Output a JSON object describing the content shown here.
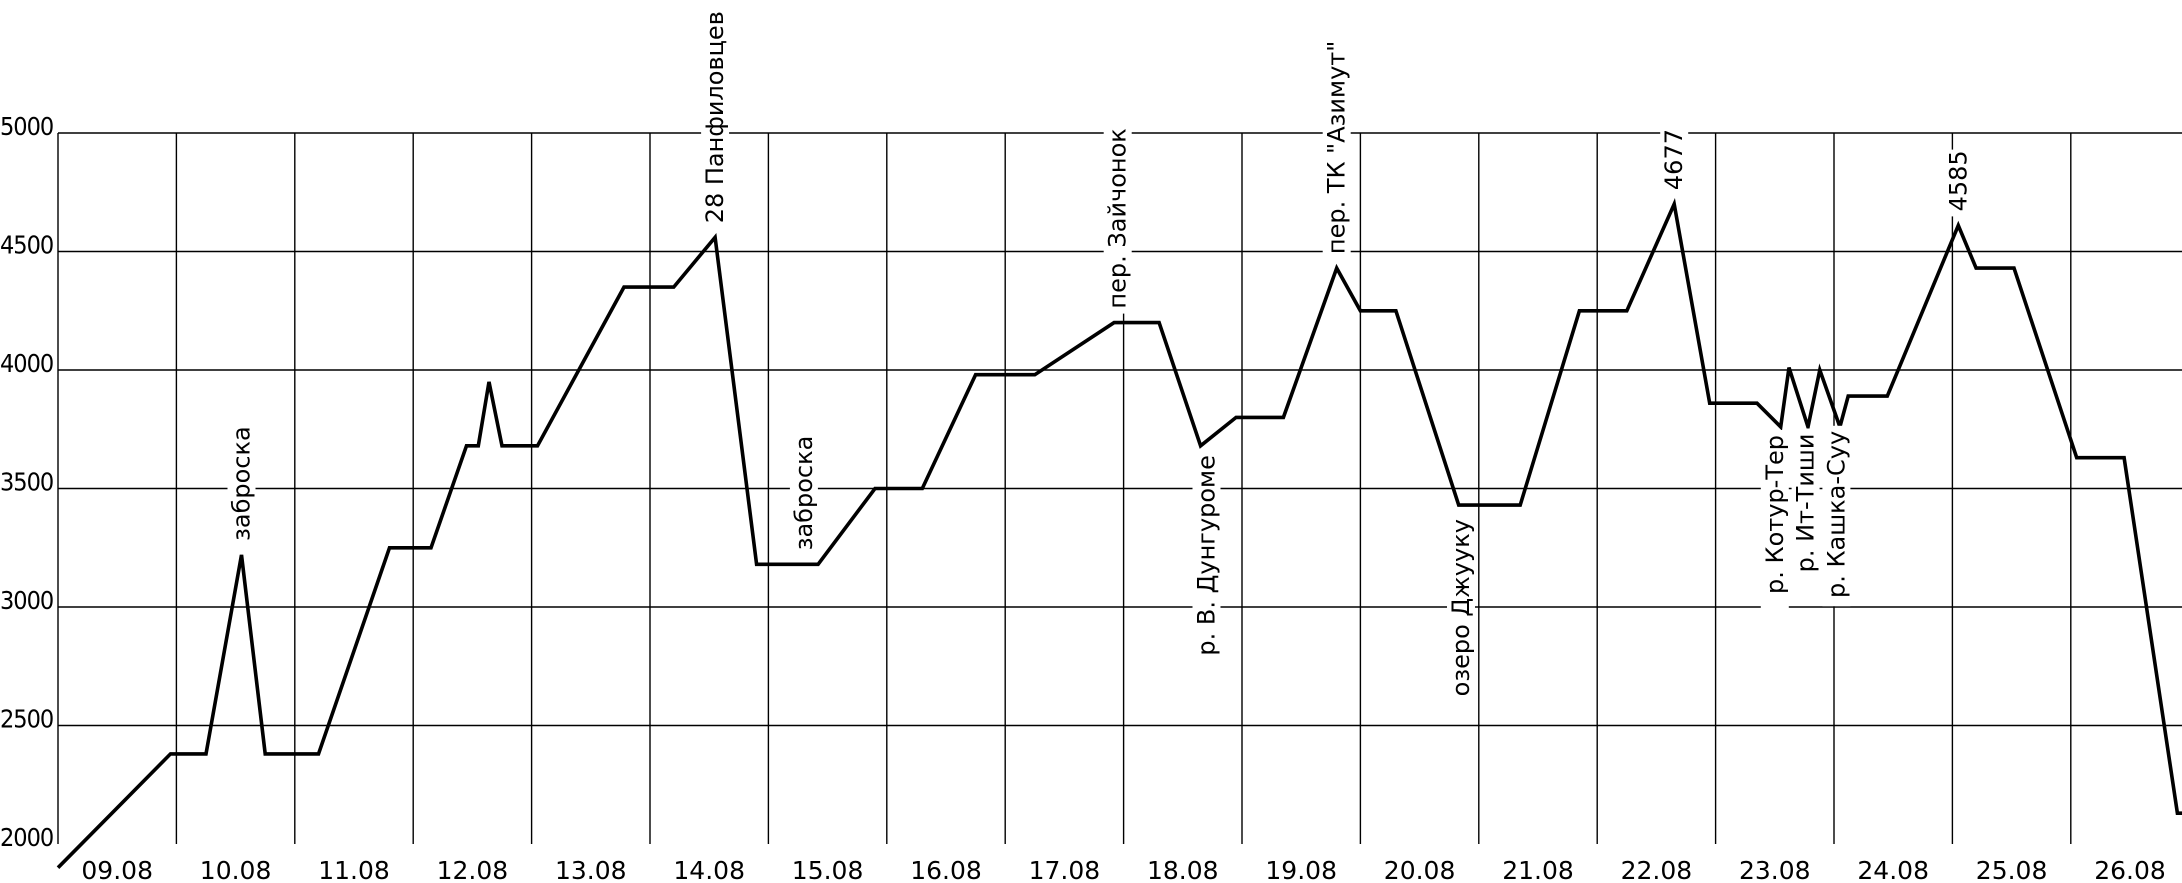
{
  "chart_data": {
    "type": "line",
    "title": "",
    "xlabel": "",
    "ylabel": "",
    "ylim": [
      2000,
      5000
    ],
    "y_ticks": [
      "5000",
      "4500",
      "4000",
      "3500",
      "3000",
      "2500",
      "2000"
    ],
    "x_ticks": [
      "09.08",
      "10.08",
      "11.08",
      "12.08",
      "13.08",
      "14.08",
      "15.08",
      "16.08",
      "17.08",
      "18.08",
      "19.08",
      "20.08",
      "21.08",
      "22.08",
      "23.08",
      "24.08",
      "25.08",
      "26.08"
    ],
    "x_unit": "day index (0 = left edge, 1 grid column per day)",
    "grid": true,
    "series": [
      {
        "points": [
          [
            0.0,
            1900
          ],
          [
            0.95,
            2380
          ],
          [
            1.25,
            2380
          ],
          [
            1.55,
            3220
          ],
          [
            1.75,
            2380
          ],
          [
            2.2,
            2380
          ],
          [
            2.8,
            3250
          ],
          [
            3.15,
            3250
          ],
          [
            3.45,
            3680
          ],
          [
            3.55,
            3680
          ],
          [
            3.64,
            3950
          ],
          [
            3.75,
            3680
          ],
          [
            4.05,
            3680
          ],
          [
            4.78,
            4350
          ],
          [
            5.2,
            4350
          ],
          [
            5.55,
            4560
          ],
          [
            5.9,
            3180
          ],
          [
            6.42,
            3180
          ],
          [
            6.9,
            3500
          ],
          [
            7.3,
            3500
          ],
          [
            7.75,
            3980
          ],
          [
            8.25,
            3980
          ],
          [
            8.92,
            4200
          ],
          [
            9.3,
            4200
          ],
          [
            9.65,
            3680
          ],
          [
            9.95,
            3800
          ],
          [
            10.35,
            3800
          ],
          [
            10.8,
            4430
          ],
          [
            11.0,
            4250
          ],
          [
            11.3,
            4250
          ],
          [
            11.83,
            3430
          ],
          [
            12.35,
            3430
          ],
          [
            12.85,
            4250
          ],
          [
            13.25,
            4250
          ],
          [
            13.65,
            4700
          ],
          [
            13.95,
            3860
          ],
          [
            14.35,
            3860
          ],
          [
            14.55,
            3760
          ],
          [
            14.62,
            4010
          ],
          [
            14.78,
            3760
          ],
          [
            14.88,
            4000
          ],
          [
            15.05,
            3760
          ],
          [
            15.12,
            3890
          ],
          [
            15.45,
            3890
          ],
          [
            16.05,
            4610
          ],
          [
            16.2,
            4430
          ],
          [
            16.52,
            4430
          ],
          [
            17.05,
            3630
          ],
          [
            17.45,
            3630
          ],
          [
            17.9,
            2130
          ],
          [
            18.15,
            2130
          ]
        ]
      }
    ],
    "annotations": [
      {
        "text": "заброска",
        "x": 1.55,
        "side": "above"
      },
      {
        "text": "28 Панфиловцев",
        "x": 5.55,
        "side": "above"
      },
      {
        "text": "заброска",
        "x": 6.3,
        "side": "above"
      },
      {
        "text": "пер. Зайчонок",
        "x": 8.95,
        "side": "above"
      },
      {
        "text": "р. В. Дунгуроме",
        "x": 9.7,
        "side": "below"
      },
      {
        "text": "пер. ТК \"Азимут\"",
        "x": 10.8,
        "side": "above"
      },
      {
        "text": "озеро Джууку",
        "x": 11.85,
        "side": "below"
      },
      {
        "text": "4677",
        "x": 13.65,
        "side": "above"
      },
      {
        "text": "р. Котур-Тер",
        "x": 14.5,
        "side": "below"
      },
      {
        "text": "р. Ит-Тиши",
        "x": 14.76,
        "side": "below"
      },
      {
        "text": "р. Кашка-Суу",
        "x": 15.02,
        "side": "below"
      },
      {
        "text": "4585",
        "x": 16.05,
        "side": "above"
      }
    ]
  }
}
